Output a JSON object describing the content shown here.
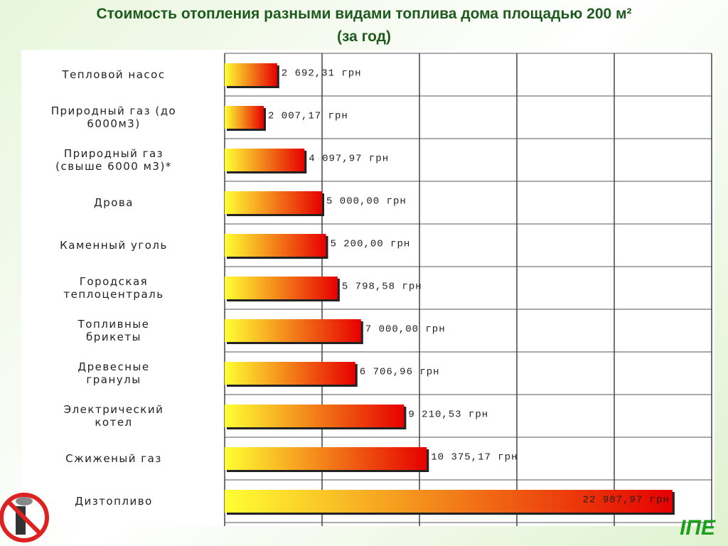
{
  "chart_data": {
    "type": "hbar",
    "title": "Стоимость отопления разными видами топлива дома площадью 200 м²",
    "subtitle": "(за год)",
    "categories": [
      "Тепловой насос",
      "Природный газ (до\n6000м3)",
      "Природный газ\n(свыше 6000 м3)*",
      "Дрова",
      "Каменный уголь",
      "Городская\nтеплоцентраль",
      "Топливные\nбрикеты",
      "Древесные\nгранулы",
      "Электрический\nкотел",
      "Сжиженый газ",
      "Дизтопливо"
    ],
    "values": [
      2692.31,
      2007.17,
      4097.97,
      5000,
      5200,
      5798.58,
      7000,
      6706.96,
      9210.53,
      10375.17,
      22987.97
    ],
    "value_labels": [
      "2 692,31 грн",
      "2 007,17 грн",
      "4 097,97 грн",
      "5 000,00 грн",
      "5 200,00 грн",
      "5 798,58 грн",
      "7 000,00 грн",
      "6 706,96 грн",
      "9 210,53 грн",
      "10 375,17 грн",
      "22 987,97 грн"
    ],
    "colors": [
      "#ffff33",
      "#e60000"
    ],
    "xlim": [
      0,
      25000
    ],
    "xticks": [
      0,
      5000,
      10000,
      15000,
      20000,
      25000
    ],
    "grid": true
  },
  "logo": "IПЕ"
}
